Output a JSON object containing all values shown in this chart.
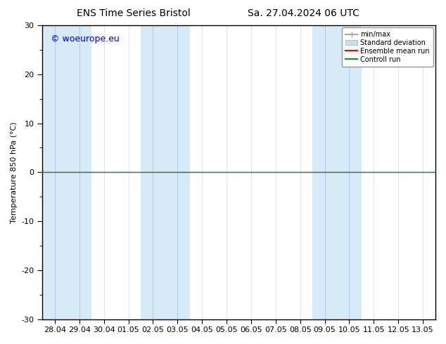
{
  "title_left": "ENS Time Series Bristol",
  "title_right": "Sa. 27.04.2024 06 UTC",
  "ylabel": "Temperature 850 hPa (°C)",
  "watermark": "© woeurope.eu",
  "ylim": [
    -30,
    30
  ],
  "yticks": [
    -30,
    -20,
    -10,
    0,
    10,
    20,
    30
  ],
  "x_labels": [
    "28.04",
    "29.04",
    "30.04",
    "01.05",
    "02.05",
    "03.05",
    "04.05",
    "05.05",
    "06.05",
    "07.05",
    "08.05",
    "09.05",
    "10.05",
    "11.05",
    "12.05",
    "13.05"
  ],
  "x_values": [
    0,
    1,
    2,
    3,
    4,
    5,
    6,
    7,
    8,
    9,
    10,
    11,
    12,
    13,
    14,
    15
  ],
  "shaded_columns": [
    0,
    1,
    4,
    5,
    11,
    12
  ],
  "shaded_color": "#d6eaf8",
  "divider_line_color": "#aaccee",
  "ensemble_mean_color": "#ff0000",
  "control_run_color": "#228B22",
  "flat_value": 0.0,
  "background_color": "#ffffff",
  "plot_bg_color": "#ffffff",
  "border_color": "#000000",
  "legend_minmax_color": "#aaaaaa",
  "legend_std_color": "#c8dff0",
  "title_fontsize": 10,
  "axis_fontsize": 8,
  "tick_fontsize": 8,
  "watermark_color": "#0000cc"
}
